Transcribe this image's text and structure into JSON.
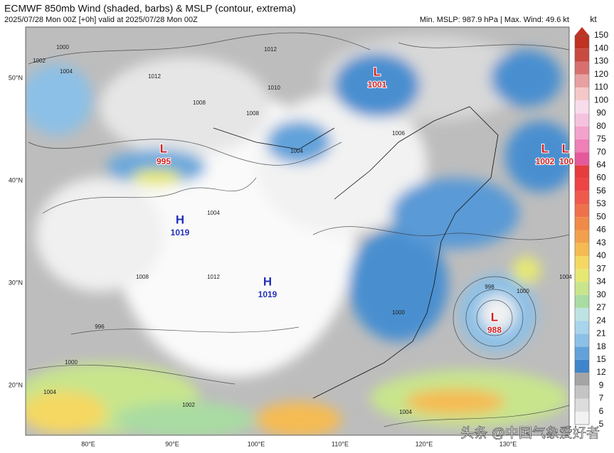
{
  "header": {
    "title": "ECMWF 850mb Wind (shaded, barbs) & MSLP (contour, extrema)",
    "subtitle": "2025/07/28 Mon 00Z [+0h] valid at 2025/07/28 Mon 00Z",
    "stats": "Min. MSLP: 987.9 hPa | Max. Wind: 49.6 kt"
  },
  "colorbar": {
    "unit": "kt",
    "levels": [
      "5",
      "6",
      "7",
      "9",
      "12",
      "15",
      "18",
      "21",
      "24",
      "27",
      "30",
      "34",
      "37",
      "40",
      "43",
      "46",
      "50",
      "53",
      "56",
      "60",
      "64",
      "70",
      "75",
      "80",
      "90",
      "100",
      "110",
      "120",
      "130",
      "140",
      "150"
    ],
    "colors": [
      "#f2f2f2",
      "#dcdcdc",
      "#c4c4c4",
      "#a4a4a4",
      "#3f85cc",
      "#62a2da",
      "#8cc0e6",
      "#a8d4ec",
      "#bfe3e2",
      "#a9dca2",
      "#c8e58c",
      "#e6e874",
      "#f5d862",
      "#f5bb52",
      "#f3a04c",
      "#f08a48",
      "#ef704c",
      "#ef5a4c",
      "#ee4444",
      "#e63c3c",
      "#e6589c",
      "#ef80b8",
      "#f3a2cc",
      "#f5c2de",
      "#f8dcec",
      "#f4c8c8",
      "#e8a0a0",
      "#d87070",
      "#c84a40",
      "#c03222"
    ],
    "arrow_color": "#c03222"
  },
  "axes": {
    "lat": [
      "50°N",
      "40°N",
      "30°N",
      "20°N"
    ],
    "lon": [
      "80°E",
      "90°E",
      "100°E",
      "110°E",
      "120°E",
      "130°E"
    ]
  },
  "centers": [
    {
      "letter": "L",
      "value": "1001"
    },
    {
      "letter": "L",
      "value": "995"
    },
    {
      "letter": "L",
      "value": "1002"
    },
    {
      "letter": "L",
      "value": "100"
    },
    {
      "letter": "H",
      "value": "1019"
    },
    {
      "letter": "H",
      "value": "1019"
    },
    {
      "letter": "L",
      "value": "988"
    }
  ],
  "contour_labels": [
    "1000",
    "1002",
    "1004",
    "1008",
    "1012",
    "1010",
    "1008",
    "1004",
    "1006",
    "1012",
    "1000",
    "1004",
    "998",
    "1000",
    "1004",
    "996",
    "1000",
    "1004",
    "1002",
    "1008",
    "1012",
    "1004"
  ],
  "watermark": "头条 @中国气象爱好者"
}
